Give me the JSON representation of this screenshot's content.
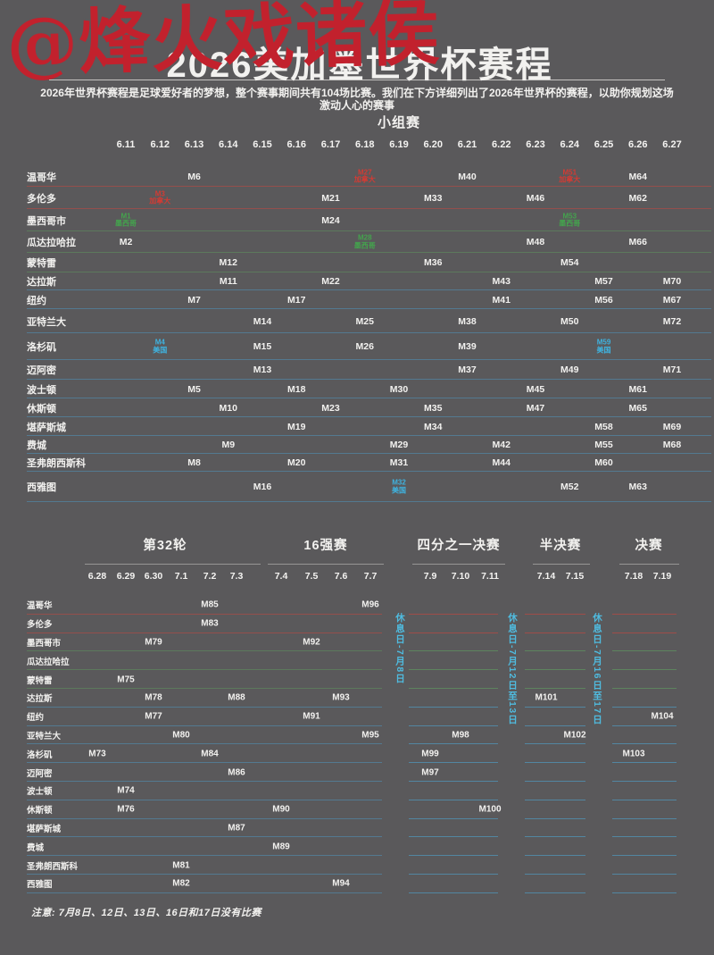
{
  "watermark": "@烽火戏诸侯",
  "title": "2026美加墨世界杯赛程",
  "subtitle": "2026年世界杯赛程是足球爱好者的梦想，整个赛事期间共有104场比赛。我们在下方详细列出了2026年世界杯的赛程，以助你规划这场激动人心的赛事",
  "footnote": "注意: 7月8日、12日、13日、16日和17日没有比赛",
  "colors": {
    "background": "#5a595b",
    "text": "#f2f1ef",
    "watermark_red": "#c2212d",
    "canada": "#d23b34",
    "mexico": "#44a34d",
    "usa": "#3fb3e0",
    "rest_day": "#4fbbdf"
  },
  "chart_data": {
    "type": "table",
    "title": "2026美加墨世界杯赛程",
    "group_stage": {
      "heading": "小组赛",
      "dates": [
        "6.11",
        "6.12",
        "6.13",
        "6.14",
        "6.15",
        "6.16",
        "6.17",
        "6.18",
        "6.19",
        "6.20",
        "6.21",
        "6.22",
        "6.23",
        "6.24",
        "6.25",
        "6.26",
        "6.27"
      ],
      "rows": [
        {
          "city": "温哥华",
          "country": "canada",
          "matches": [
            {
              "m": "M6",
              "d": "6.13"
            },
            {
              "m": "M27",
              "d": "6.18",
              "tag": "加拿大",
              "c": "canada"
            },
            {
              "m": "M40",
              "d": "6.21"
            },
            {
              "m": "M51",
              "d": "6.24",
              "tag": "加拿大",
              "c": "canada"
            },
            {
              "m": "M64",
              "d": "6.26"
            }
          ]
        },
        {
          "city": "多伦多",
          "country": "canada",
          "matches": [
            {
              "m": "M3",
              "d": "6.12",
              "tag": "加拿大",
              "c": "canada"
            },
            {
              "m": "M21",
              "d": "6.17"
            },
            {
              "m": "M33",
              "d": "6.20"
            },
            {
              "m": "M46",
              "d": "6.23"
            },
            {
              "m": "M62",
              "d": "6.26"
            }
          ]
        },
        {
          "city": "墨西哥市",
          "country": "mexico",
          "matches": [
            {
              "m": "M1",
              "d": "6.11",
              "tag": "墨西哥",
              "c": "mexico"
            },
            {
              "m": "M24",
              "d": "6.17"
            },
            {
              "m": "M53",
              "d": "6.24",
              "tag": "墨西哥",
              "c": "mexico"
            }
          ]
        },
        {
          "city": "瓜达拉哈拉",
          "country": "mexico",
          "matches": [
            {
              "m": "M2",
              "d": "6.11"
            },
            {
              "m": "M28",
              "d": "6.18",
              "tag": "墨西哥",
              "c": "mexico"
            },
            {
              "m": "M48",
              "d": "6.23"
            },
            {
              "m": "M66",
              "d": "6.26"
            }
          ]
        },
        {
          "city": "蒙特雷",
          "country": "mexico",
          "matches": [
            {
              "m": "M12",
              "d": "6.14"
            },
            {
              "m": "M36",
              "d": "6.20"
            },
            {
              "m": "M54",
              "d": "6.24"
            }
          ]
        },
        {
          "city": "达拉斯",
          "country": "usa",
          "matches": [
            {
              "m": "M11",
              "d": "6.14"
            },
            {
              "m": "M22",
              "d": "6.17"
            },
            {
              "m": "M43",
              "d": "6.22"
            },
            {
              "m": "M57",
              "d": "6.25"
            },
            {
              "m": "M70",
              "d": "6.27"
            }
          ]
        },
        {
          "city": "纽约",
          "country": "usa",
          "matches": [
            {
              "m": "M7",
              "d": "6.13"
            },
            {
              "m": "M17",
              "d": "6.16"
            },
            {
              "m": "M41",
              "d": "6.22"
            },
            {
              "m": "M56",
              "d": "6.25"
            },
            {
              "m": "M67",
              "d": "6.27"
            }
          ]
        },
        {
          "city": "亚特兰大",
          "country": "usa",
          "matches": [
            {
              "m": "M14",
              "d": "6.15"
            },
            {
              "m": "M25",
              "d": "6.18"
            },
            {
              "m": "M38",
              "d": "6.21"
            },
            {
              "m": "M50",
              "d": "6.24"
            },
            {
              "m": "M72",
              "d": "6.27"
            }
          ]
        },
        {
          "city": "洛杉矶",
          "country": "usa",
          "matches": [
            {
              "m": "M4",
              "d": "6.12",
              "tag": "美国",
              "c": "usa"
            },
            {
              "m": "M15",
              "d": "6.15"
            },
            {
              "m": "M26",
              "d": "6.18"
            },
            {
              "m": "M39",
              "d": "6.21"
            },
            {
              "m": "M59",
              "d": "6.25",
              "tag": "美国",
              "c": "usa"
            }
          ]
        },
        {
          "city": "迈阿密",
          "country": "usa",
          "matches": [
            {
              "m": "M13",
              "d": "6.15"
            },
            {
              "m": "M37",
              "d": "6.21"
            },
            {
              "m": "M49",
              "d": "6.24"
            },
            {
              "m": "M71",
              "d": "6.27"
            }
          ]
        },
        {
          "city": "波士顿",
          "country": "usa",
          "matches": [
            {
              "m": "M5",
              "d": "6.13"
            },
            {
              "m": "M18",
              "d": "6.16"
            },
            {
              "m": "M30",
              "d": "6.19"
            },
            {
              "m": "M45",
              "d": "6.23"
            },
            {
              "m": "M61",
              "d": "6.26"
            }
          ]
        },
        {
          "city": "休斯顿",
          "country": "usa",
          "matches": [
            {
              "m": "M10",
              "d": "6.14"
            },
            {
              "m": "M23",
              "d": "6.17"
            },
            {
              "m": "M35",
              "d": "6.20"
            },
            {
              "m": "M47",
              "d": "6.23"
            },
            {
              "m": "M65",
              "d": "6.26"
            }
          ]
        },
        {
          "city": "堪萨斯城",
          "country": "usa",
          "matches": [
            {
              "m": "M19",
              "d": "6.16"
            },
            {
              "m": "M34",
              "d": "6.20"
            },
            {
              "m": "M58",
              "d": "6.25"
            },
            {
              "m": "M69",
              "d": "6.27"
            }
          ]
        },
        {
          "city": "费城",
          "country": "usa",
          "matches": [
            {
              "m": "M9",
              "d": "6.14"
            },
            {
              "m": "M29",
              "d": "6.19"
            },
            {
              "m": "M42",
              "d": "6.22"
            },
            {
              "m": "M55",
              "d": "6.25"
            },
            {
              "m": "M68",
              "d": "6.27"
            }
          ]
        },
        {
          "city": "圣弗朗西斯科",
          "country": "usa",
          "matches": [
            {
              "m": "M8",
              "d": "6.13"
            },
            {
              "m": "M20",
              "d": "6.16"
            },
            {
              "m": "M31",
              "d": "6.19"
            },
            {
              "m": "M44",
              "d": "6.22"
            },
            {
              "m": "M60",
              "d": "6.25"
            }
          ]
        },
        {
          "city": "西雅图",
          "country": "usa",
          "matches": [
            {
              "m": "M16",
              "d": "6.15"
            },
            {
              "m": "M32",
              "d": "6.19",
              "tag": "美国",
              "c": "usa"
            },
            {
              "m": "M52",
              "d": "6.24"
            },
            {
              "m": "M63",
              "d": "6.26"
            }
          ]
        }
      ]
    },
    "knockout": {
      "sections": [
        {
          "title": "第32轮",
          "dates": [
            "6.28",
            "6.29",
            "6.30",
            "7.1",
            "7.2",
            "7.3"
          ]
        },
        {
          "title": "16强赛",
          "dates": [
            "7.4",
            "7.5",
            "7.6",
            "7.7"
          ]
        },
        {
          "title": "四分之一决赛",
          "dates": [
            "7.9",
            "7.10",
            "7.11"
          ]
        },
        {
          "title": "半决赛",
          "dates": [
            "7.14",
            "7.15"
          ]
        },
        {
          "title": "决赛",
          "dates": [
            "7.18",
            "7.19"
          ]
        }
      ],
      "rest_days": [
        "休息日-7月8日",
        "休息日-7月12日至13日",
        "休息日-7月16日至17日"
      ],
      "rows": [
        {
          "city": "温哥华",
          "country": "canada",
          "matches": [
            {
              "m": "M85",
              "d": "7.2"
            },
            {
              "m": "M96",
              "d": "7.7"
            }
          ]
        },
        {
          "city": "多伦多",
          "country": "canada",
          "matches": [
            {
              "m": "M83",
              "d": "7.2"
            }
          ]
        },
        {
          "city": "墨西哥市",
          "country": "mexico",
          "matches": [
            {
              "m": "M79",
              "d": "6.30"
            },
            {
              "m": "M92",
              "d": "7.5"
            }
          ]
        },
        {
          "city": "瓜达拉哈拉",
          "country": "mexico",
          "matches": []
        },
        {
          "city": "蒙特雷",
          "country": "mexico",
          "matches": [
            {
              "m": "M75",
              "d": "6.29"
            }
          ]
        },
        {
          "city": "达拉斯",
          "country": "usa",
          "matches": [
            {
              "m": "M78",
              "d": "6.30"
            },
            {
              "m": "M88",
              "d": "7.3"
            },
            {
              "m": "M93",
              "d": "7.6"
            },
            {
              "m": "M101",
              "d": "7.14"
            }
          ]
        },
        {
          "city": "纽约",
          "country": "usa",
          "matches": [
            {
              "m": "M77",
              "d": "6.30"
            },
            {
              "m": "M91",
              "d": "7.5"
            },
            {
              "m": "M104",
              "d": "7.19"
            }
          ]
        },
        {
          "city": "亚特兰大",
          "country": "usa",
          "matches": [
            {
              "m": "M80",
              "d": "7.1"
            },
            {
              "m": "M95",
              "d": "7.7"
            },
            {
              "m": "M98",
              "d": "7.10"
            },
            {
              "m": "M102",
              "d": "7.15"
            }
          ]
        },
        {
          "city": "洛杉矶",
          "country": "usa",
          "matches": [
            {
              "m": "M73",
              "d": "6.28"
            },
            {
              "m": "M84",
              "d": "7.2"
            },
            {
              "m": "M99",
              "d": "7.9"
            },
            {
              "m": "M103",
              "d": "7.18"
            }
          ]
        },
        {
          "city": "迈阿密",
          "country": "usa",
          "matches": [
            {
              "m": "M86",
              "d": "7.3"
            },
            {
              "m": "M97",
              "d": "7.9"
            }
          ]
        },
        {
          "city": "波士顿",
          "country": "usa",
          "matches": [
            {
              "m": "M74",
              "d": "6.29"
            }
          ]
        },
        {
          "city": "休斯顿",
          "country": "usa",
          "matches": [
            {
              "m": "M76",
              "d": "6.29"
            },
            {
              "m": "M90",
              "d": "7.4"
            },
            {
              "m": "M100",
              "d": "7.11"
            }
          ]
        },
        {
          "city": "堪萨斯城",
          "country": "usa",
          "matches": [
            {
              "m": "M87",
              "d": "7.3"
            }
          ]
        },
        {
          "city": "费城",
          "country": "usa",
          "matches": [
            {
              "m": "M89",
              "d": "7.4"
            }
          ]
        },
        {
          "city": "圣弗朗西斯科",
          "country": "usa",
          "matches": [
            {
              "m": "M81",
              "d": "7.1"
            }
          ]
        },
        {
          "city": "西雅图",
          "country": "usa",
          "matches": [
            {
              "m": "M82",
              "d": "7.1"
            },
            {
              "m": "M94",
              "d": "7.6"
            }
          ]
        }
      ]
    }
  }
}
